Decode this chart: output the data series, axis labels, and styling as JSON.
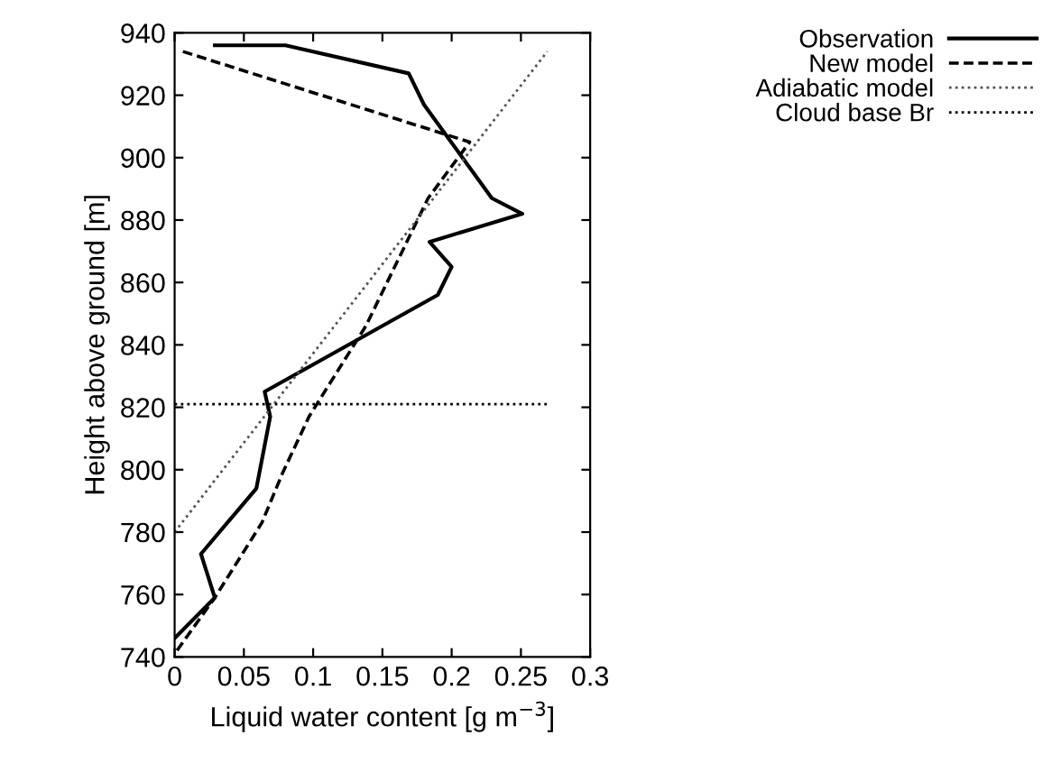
{
  "chart_data": {
    "type": "line",
    "xlabel": "Liquid water content [g m$^{−3}$]",
    "ylabel": "Height above ground [m]",
    "xlim": [
      0,
      0.3
    ],
    "ylim": [
      740,
      940
    ],
    "xticks": [
      0,
      0.05,
      0.1,
      0.15,
      0.2,
      0.25,
      0.3
    ],
    "yticks": [
      740,
      760,
      780,
      800,
      820,
      840,
      860,
      880,
      900,
      920,
      940
    ],
    "legend": "top right",
    "grid": false,
    "series": [
      {
        "name": "Observation",
        "color": "#000000",
        "line_style": "solid",
        "x": [
          0.029,
          0.08,
          0.169,
          0.18,
          0.229,
          0.251,
          0.184,
          0.2,
          0.19,
          0.065,
          0.069,
          0.059,
          0.019,
          0.029,
          0
        ],
        "values": [
          936,
          936,
          927,
          917,
          887,
          882,
          873,
          865,
          856,
          825,
          817,
          794,
          773,
          759,
          746
        ]
      },
      {
        "name": "New model",
        "color": "#000000",
        "line_style": "dashed",
        "x": [
          0.006,
          0.213,
          0.183,
          0.138,
          0.097,
          0.078,
          0.063,
          0.029,
          0
        ],
        "values": [
          934,
          905,
          887,
          846,
          817,
          799,
          783,
          759,
          741
        ]
      },
      {
        "name": "Adiabatic model",
        "color": "#555555",
        "line_style": "dotted",
        "x": [
          0,
          0.269
        ],
        "values": [
          780,
          934
        ]
      },
      {
        "name": "Cloud base Br",
        "color": "#000000",
        "line_style": "dotted",
        "x": [
          0,
          0.271
        ],
        "values": [
          821,
          821
        ]
      }
    ]
  }
}
